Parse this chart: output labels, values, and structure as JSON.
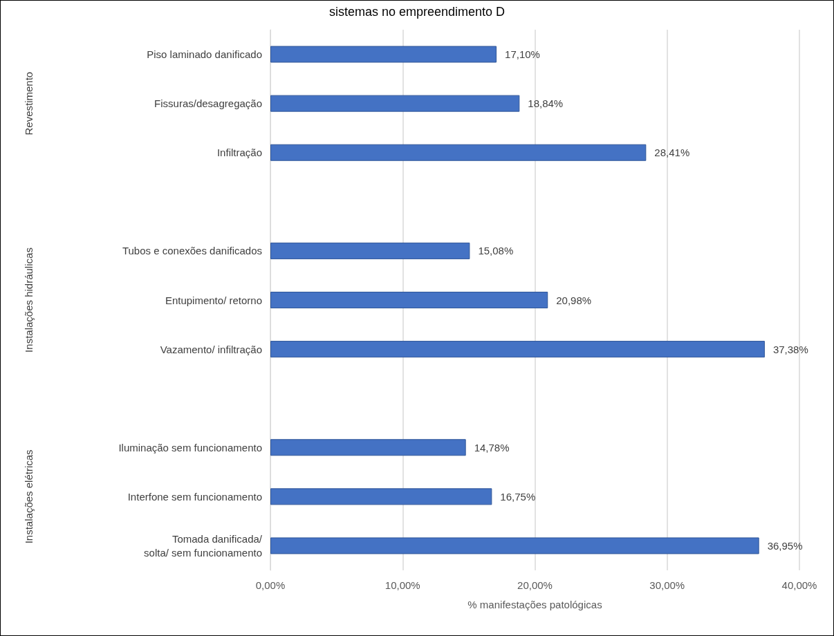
{
  "chart_data": {
    "type": "bar",
    "orientation": "horizontal",
    "title": "sistemas no empreendimento D",
    "xlabel": "% manifestações patológicas",
    "categories": [
      "Piso laminado danificado",
      "Fissuras/desagregação",
      "Infiltração",
      null,
      "Tubos e conexões danificados",
      "Entupimento/ retorno",
      "Vazamento/ infiltração",
      null,
      "Iluminação sem funcionamento",
      "Interfone sem funcionamento",
      "Tomada danificada/\nsolta/ sem funcionamento"
    ],
    "values": [
      17.1,
      18.84,
      28.41,
      null,
      15.08,
      20.98,
      37.38,
      null,
      14.78,
      16.75,
      36.95
    ],
    "value_labels": [
      "17,10%",
      "18,84%",
      "28,41%",
      null,
      "15,08%",
      "20,98%",
      "37,38%",
      null,
      "14,78%",
      "16,75%",
      "36,95%"
    ],
    "color": "#4472c4",
    "xlim": [
      0,
      40
    ],
    "xticks": [
      {
        "value": 0,
        "label": "0,00%"
      },
      {
        "value": 10,
        "label": "10,00%"
      },
      {
        "value": 20,
        "label": "20,00%"
      },
      {
        "value": 30,
        "label": "30,00%"
      },
      {
        "value": 40,
        "label": "40,00%"
      }
    ],
    "grid": "x",
    "annotations": [
      "Revestimento",
      "Instalações hidráulicas",
      "Instalações elétricas"
    ]
  }
}
